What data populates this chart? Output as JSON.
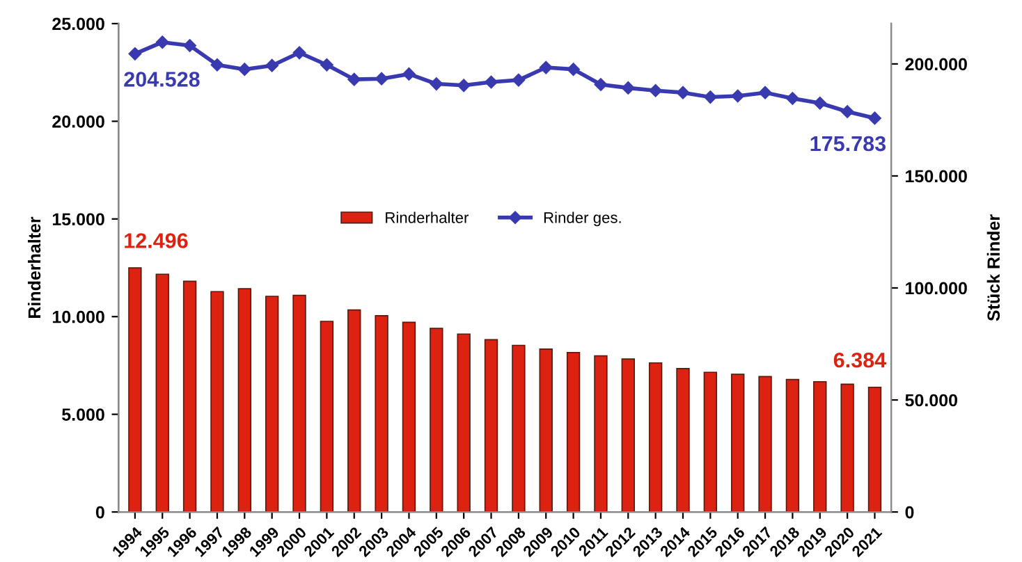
{
  "chart_data": {
    "type": "bar",
    "ylabel": "Rinderhalter",
    "y2label": "Stück Rinder",
    "categories": [
      "1994",
      "1995",
      "1996",
      "1997",
      "1998",
      "1999",
      "2000",
      "2001",
      "2002",
      "2003",
      "2004",
      "2005",
      "2006",
      "2007",
      "2008",
      "2009",
      "2010",
      "2011",
      "2012",
      "2013",
      "2014",
      "2015",
      "2016",
      "2017",
      "2018",
      "2019",
      "2020",
      "2021"
    ],
    "series": [
      {
        "name": "Rinderhalter",
        "color": "#dd2211",
        "values": [
          12496,
          12170,
          11810,
          11280,
          11430,
          11040,
          11090,
          9760,
          10340,
          10050,
          9710,
          9400,
          9110,
          8820,
          8530,
          8340,
          8160,
          7990,
          7830,
          7630,
          7340,
          7150,
          7050,
          6930,
          6780,
          6670,
          6540,
          6384
        ],
        "value_labels": [
          "12.496",
          null,
          null,
          null,
          null,
          null,
          null,
          null,
          null,
          null,
          null,
          null,
          null,
          null,
          null,
          null,
          null,
          null,
          null,
          null,
          null,
          null,
          null,
          null,
          null,
          null,
          null,
          "6.384"
        ]
      },
      {
        "name": "Rinder ges.",
        "type": "line",
        "axis": "y2",
        "color": "#3a3ab0",
        "marker": "diamond",
        "line_style": "solid",
        "values": [
          204528,
          209700,
          208200,
          199600,
          197600,
          199300,
          205000,
          199600,
          193100,
          193400,
          195500,
          191100,
          190400,
          191900,
          192800,
          198400,
          197600,
          190800,
          189300,
          188100,
          187200,
          185200,
          185700,
          187200,
          184600,
          182500,
          178700,
          175783
        ],
        "value_labels": [
          "204.528",
          null,
          null,
          null,
          null,
          null,
          null,
          null,
          null,
          null,
          null,
          null,
          null,
          null,
          null,
          null,
          null,
          null,
          null,
          null,
          null,
          null,
          null,
          null,
          null,
          null,
          null,
          "175.783"
        ]
      }
    ],
    "ylim": [
      0,
      25000
    ],
    "yticks": [
      {
        "value": 0,
        "label": "0"
      },
      {
        "value": 5000,
        "label": "5.000"
      },
      {
        "value": 10000,
        "label": "10.000"
      },
      {
        "value": 15000,
        "label": "15.000"
      },
      {
        "value": 20000,
        "label": "20.000"
      },
      {
        "value": 25000,
        "label": "25.000"
      }
    ],
    "y2lim": [
      0,
      218000
    ],
    "y2ticks": [
      {
        "value": 0,
        "label": "0"
      },
      {
        "value": 50000,
        "label": "50.000"
      },
      {
        "value": 100000,
        "label": "100.000"
      },
      {
        "value": 150000,
        "label": "150.000"
      },
      {
        "value": 200000,
        "label": "200.000"
      }
    ],
    "grid": false,
    "legend": "center"
  }
}
